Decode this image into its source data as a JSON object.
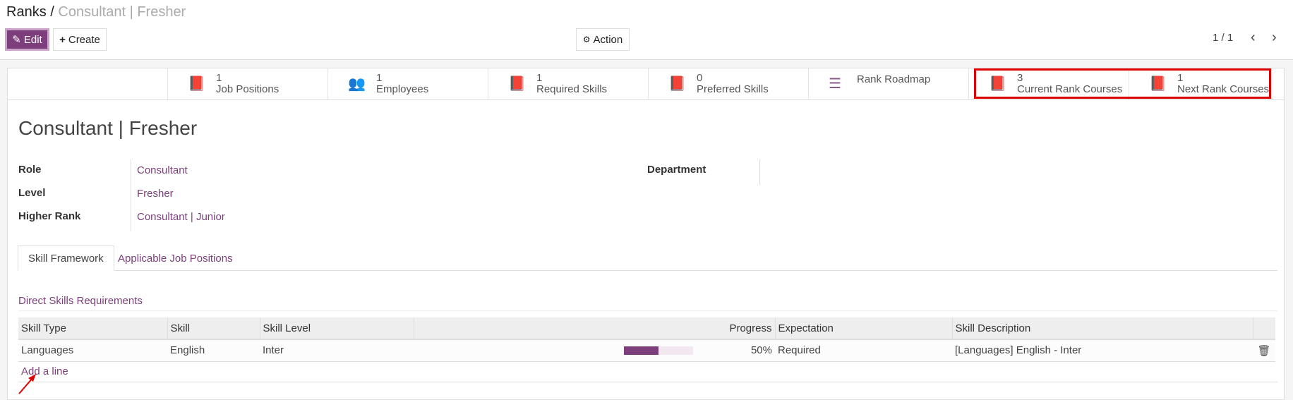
{
  "breadcrumb": {
    "parent": "Ranks",
    "separator": "/",
    "current": "Consultant | Fresher"
  },
  "toolbar": {
    "edit": "Edit",
    "create": "Create",
    "action": "Action",
    "pager": "1 / 1"
  },
  "smart_buttons": [
    {
      "count": "1",
      "label": "Job Positions",
      "icon": "book-icon"
    },
    {
      "count": "1",
      "label": "Employees",
      "icon": "users-icon"
    },
    {
      "count": "1",
      "label": "Required Skills",
      "icon": "book-icon"
    },
    {
      "count": "0",
      "label": "Preferred Skills",
      "icon": "book-icon"
    },
    {
      "count": "",
      "label": "Rank Roadmap",
      "icon": "list-icon"
    },
    {
      "count": "3",
      "label": "Current Rank Courses",
      "icon": "book-icon"
    },
    {
      "count": "1",
      "label": "Next Rank Courses",
      "icon": "book-icon"
    }
  ],
  "title": "Consultant | Fresher",
  "fields": {
    "role_label": "Role",
    "role": "Consultant",
    "level_label": "Level",
    "level": "Fresher",
    "higher_rank_label": "Higher Rank",
    "higher_rank": "Consultant | Junior",
    "department_label": "Department",
    "department": ""
  },
  "tabs": [
    "Skill Framework",
    "Applicable Job Positions"
  ],
  "section_title": "Direct Skills Requirements",
  "table": {
    "columns": [
      "Skill Type",
      "Skill",
      "Skill Level",
      "Progress",
      "Expectation",
      "Skill Description"
    ],
    "rows": [
      {
        "skill_type": "Languages",
        "skill": "English",
        "skill_level": "Inter",
        "progress": 50,
        "progress_text": "50%",
        "expectation": "Required",
        "description": "[Languages] English - Inter"
      }
    ]
  },
  "add_line": "Add a line",
  "colors": {
    "accent": "#7c3f7c",
    "highlight": "#e00000"
  }
}
